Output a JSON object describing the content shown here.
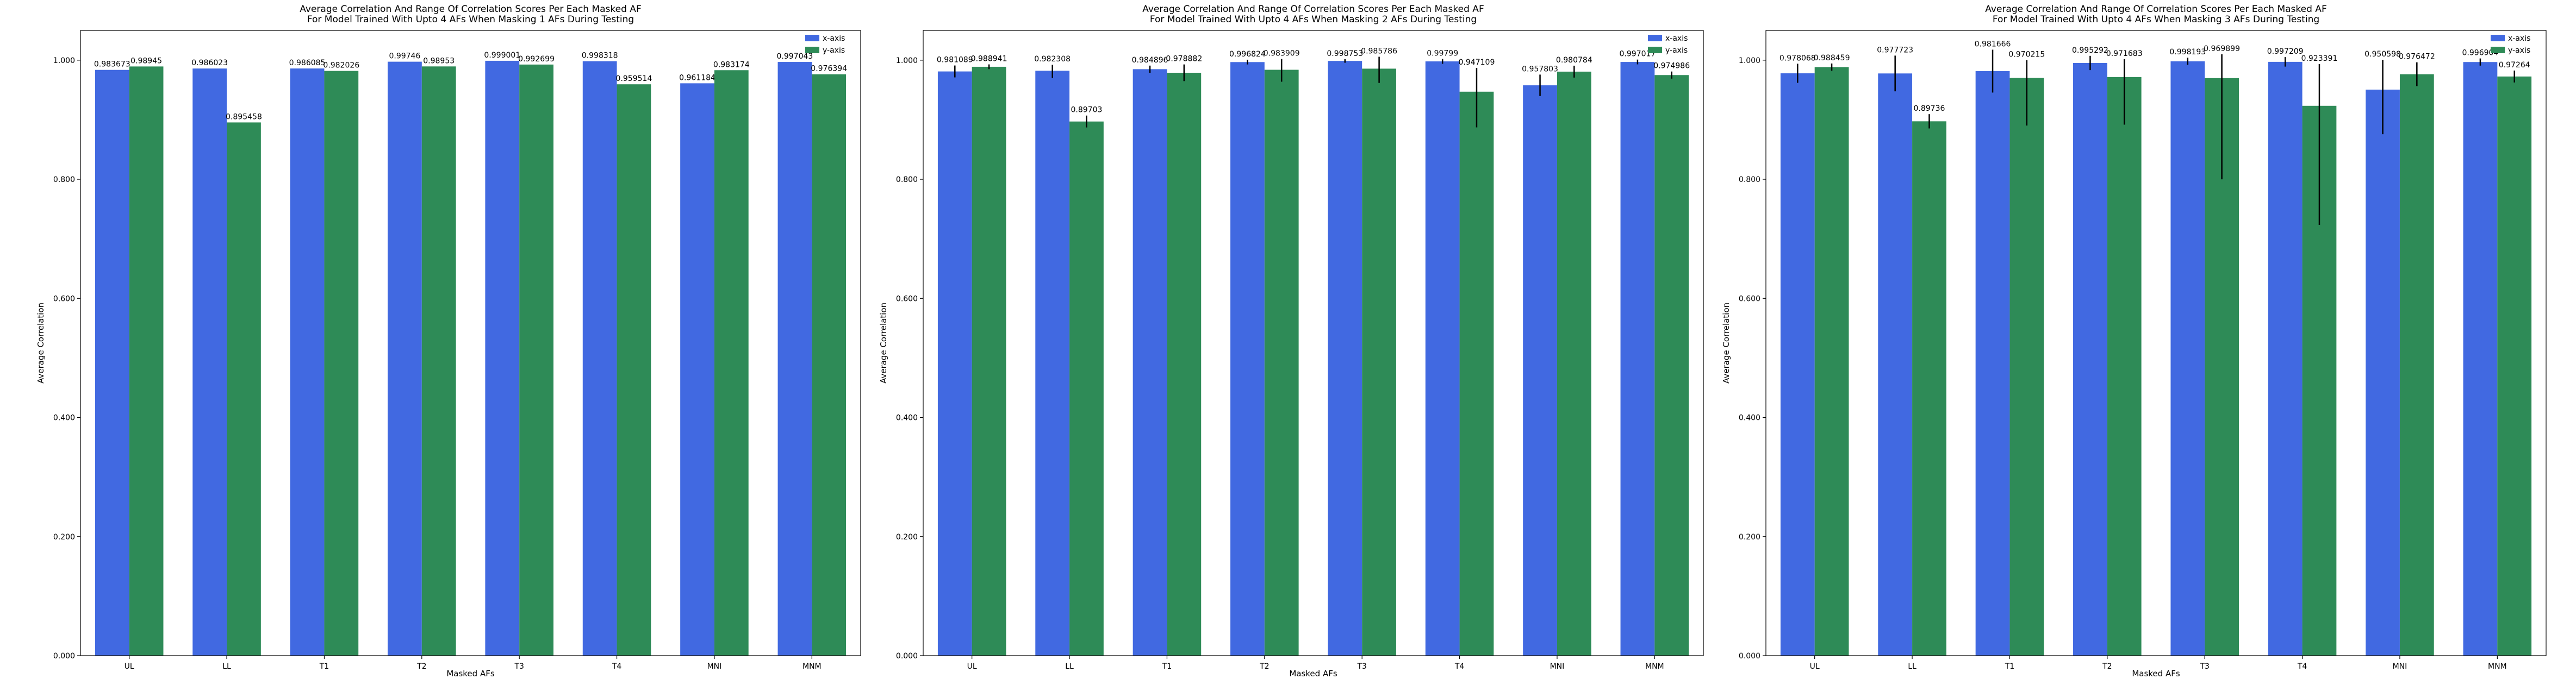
{
  "figure": {
    "background": "#ffffff",
    "series_colors": {
      "x-axis": "#4169e1",
      "y-axis": "#2e8b57"
    },
    "error_bar_color": "#000000"
  },
  "chart_data": [
    {
      "type": "bar",
      "title_lines": [
        "Average Correlation And Range Of Correlation Scores Per Each Masked AF",
        "For Model Trained With Upto 4 AFs When Masking 1 AFs During Testing"
      ],
      "xlabel": "Masked AFs",
      "ylabel": "Average Correlation",
      "categories": [
        "UL",
        "LL",
        "T1",
        "T2",
        "T3",
        "T4",
        "MNI",
        "MNM"
      ],
      "ylim": [
        0,
        1.05
      ],
      "yticks": [
        "0.000",
        "0.200",
        "0.400",
        "0.600",
        "0.800",
        "1.000"
      ],
      "legend_position": "top-right",
      "series": [
        {
          "name": "x-axis",
          "color": "#4169e1",
          "values": [
            0.983673,
            0.986023,
            0.986085,
            0.99746,
            0.999001,
            0.998318,
            0.961184,
            0.997043
          ],
          "labels": [
            "0.983673",
            "0.986023",
            "0.986085",
            "0.99746",
            "0.999001",
            "0.998318",
            "0.961184",
            "0.997043"
          ],
          "err_low": [
            0,
            0,
            0,
            0,
            0,
            0,
            0,
            0
          ],
          "err_high": [
            0,
            0,
            0,
            0,
            0,
            0,
            0,
            0
          ]
        },
        {
          "name": "y-axis",
          "color": "#2e8b57",
          "values": [
            0.98945,
            0.895458,
            0.982026,
            0.98953,
            0.992699,
            0.959514,
            0.983174,
            0.976394
          ],
          "labels": [
            "0.98945",
            "0.895458",
            "0.982026",
            "0.98953",
            "0.992699",
            "0.959514",
            "0.983174",
            "0.976394"
          ],
          "err_low": [
            0,
            0,
            0,
            0,
            0,
            0,
            0,
            0
          ],
          "err_high": [
            0,
            0,
            0,
            0,
            0,
            0,
            0,
            0
          ]
        }
      ]
    },
    {
      "type": "bar",
      "title_lines": [
        "Average Correlation And Range Of Correlation Scores Per Each Masked AF",
        "For Model Trained With Upto 4 AFs When Masking 2 AFs During Testing"
      ],
      "xlabel": "Masked AFs",
      "ylabel": "Average Correlation",
      "categories": [
        "UL",
        "LL",
        "T1",
        "T2",
        "T3",
        "T4",
        "MNI",
        "MNM"
      ],
      "ylim": [
        0,
        1.05
      ],
      "yticks": [
        "0.000",
        "0.200",
        "0.400",
        "0.600",
        "0.800",
        "1.000"
      ],
      "legend_position": "top-right",
      "series": [
        {
          "name": "x-axis",
          "color": "#4169e1",
          "values": [
            0.981089,
            0.982308,
            0.984896,
            0.996824,
            0.998753,
            0.99799,
            0.957803,
            0.997017
          ],
          "labels": [
            "0.981089",
            "0.982308",
            "0.984896",
            "0.996824",
            "0.998753",
            "0.99799",
            "0.957803",
            "0.997017"
          ],
          "err_low": [
            0.01,
            0.012,
            0.006,
            0.004,
            0.003,
            0.004,
            0.018,
            0.004
          ],
          "err_high": [
            0.01,
            0.01,
            0.006,
            0.004,
            0.003,
            0.004,
            0.018,
            0.004
          ]
        },
        {
          "name": "y-axis",
          "color": "#2e8b57",
          "values": [
            0.988941,
            0.89703,
            0.978882,
            0.983909,
            0.985786,
            0.947109,
            0.980784,
            0.974986
          ],
          "labels": [
            "0.988941",
            "0.89703",
            "0.978882",
            "0.983909",
            "0.985786",
            "0.947109",
            "0.980784",
            "0.974986"
          ],
          "err_low": [
            0.004,
            0.01,
            0.014,
            0.02,
            0.024,
            0.06,
            0.01,
            0.006
          ],
          "err_high": [
            0.004,
            0.01,
            0.014,
            0.018,
            0.02,
            0.04,
            0.01,
            0.006
          ]
        }
      ]
    },
    {
      "type": "bar",
      "title_lines": [
        "Average Correlation And Range Of Correlation Scores Per Each Masked AF",
        "For Model Trained With Upto 4 AFs When Masking 3 AFs During Testing"
      ],
      "xlabel": "Masked AFs",
      "ylabel": "Average Correlation",
      "categories": [
        "UL",
        "LL",
        "T1",
        "T2",
        "T3",
        "T4",
        "MNI",
        "MNM"
      ],
      "ylim": [
        0,
        1.05
      ],
      "yticks": [
        "0.000",
        "0.200",
        "0.400",
        "0.600",
        "0.800",
        "1.000"
      ],
      "legend_position": "top-right",
      "series": [
        {
          "name": "x-axis",
          "color": "#4169e1",
          "values": [
            0.978068,
            0.977723,
            0.981666,
            0.995292,
            0.998193,
            0.997209,
            0.950598,
            0.996904
          ],
          "labels": [
            "0.978068",
            "0.977723",
            "0.981666",
            "0.995292",
            "0.998193",
            "0.997209",
            "0.950598",
            "0.996904"
          ],
          "err_low": [
            0.016,
            0.03,
            0.036,
            0.012,
            0.006,
            0.008,
            0.075,
            0.006
          ],
          "err_high": [
            0.016,
            0.03,
            0.036,
            0.012,
            0.006,
            0.008,
            0.05,
            0.006
          ]
        },
        {
          "name": "y-axis",
          "color": "#2e8b57",
          "values": [
            0.988459,
            0.89736,
            0.970215,
            0.971683,
            0.969899,
            0.923391,
            0.976472,
            0.97264
          ],
          "labels": [
            "0.988459",
            "0.89736",
            "0.970215",
            "0.971683",
            "0.969899",
            "0.923391",
            "0.976472",
            "0.97264"
          ],
          "err_low": [
            0.006,
            0.012,
            0.08,
            0.08,
            0.17,
            0.2,
            0.02,
            0.01
          ],
          "err_high": [
            0.006,
            0.012,
            0.03,
            0.03,
            0.04,
            0.07,
            0.02,
            0.01
          ]
        }
      ]
    }
  ]
}
